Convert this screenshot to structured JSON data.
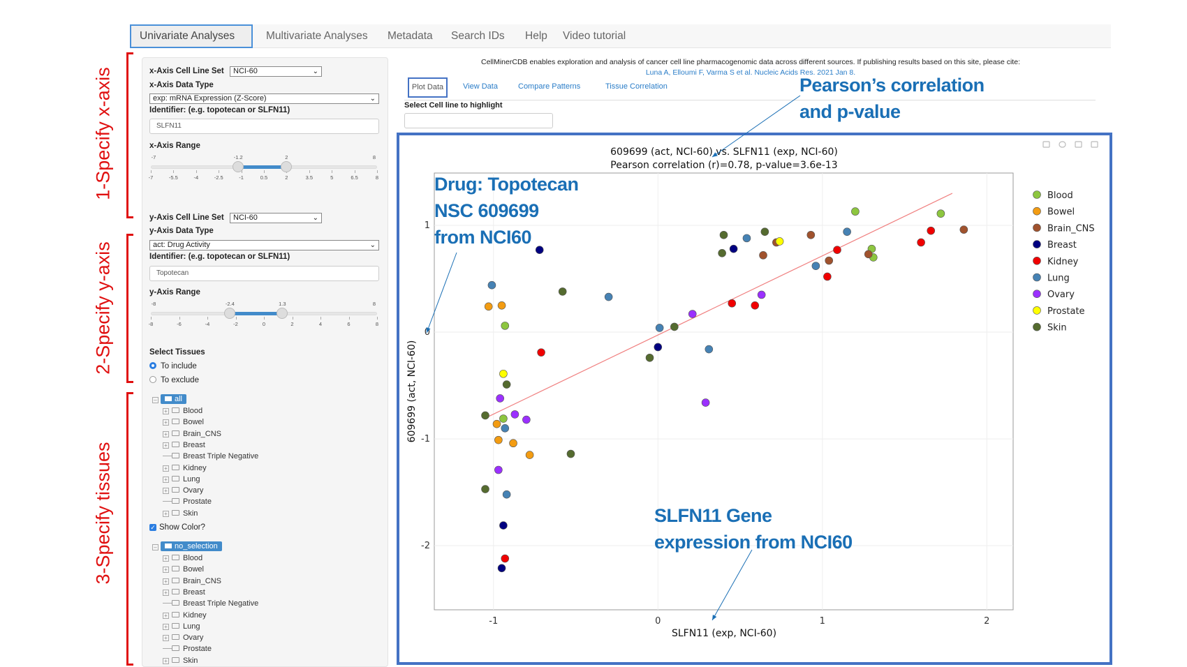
{
  "nav": {
    "tabs": [
      "Univariate Analyses",
      "Multivariate Analyses",
      "Metadata",
      "Search IDs",
      "Help",
      "Video tutorial"
    ],
    "active": 0
  },
  "steps": {
    "x": "1-Specify x-axis",
    "y": "2-Specify y-axis",
    "tissues": "3-Specify tissues"
  },
  "left": {
    "x_cell_line_set_label": "x-Axis Cell Line Set",
    "x_cell_line_set": "NCI-60",
    "x_data_type_label": "x-Axis Data Type",
    "x_data_type": "exp: mRNA Expression (Z-Score)",
    "x_identifier_label": "Identifier: (e.g. topotecan or SLFN11)",
    "x_identifier": "SLFN11",
    "x_range_label": "x-Axis Range",
    "x_range": {
      "min": -7,
      "max": 8,
      "low": -1.2,
      "high": 2,
      "ticks": [
        -7,
        -5.5,
        -4,
        -2.5,
        -1,
        0.5,
        2,
        3.5,
        5,
        6.5,
        8
      ]
    },
    "y_cell_line_set_label": "y-Axis Cell Line Set",
    "y_cell_line_set": "NCI-60",
    "y_data_type_label": "y-Axis Data Type",
    "y_data_type": "act: Drug Activity",
    "y_identifier_label": "Identifier: (e.g. topotecan or SLFN11)",
    "y_identifier": "Topotecan",
    "y_range_label": "y-Axis Range",
    "y_range": {
      "min": -8,
      "max": 8,
      "low": -2.4,
      "high": 1.3,
      "ticks": [
        -8,
        -6,
        -4,
        -2,
        0,
        2,
        4,
        6,
        8
      ]
    },
    "select_tissues_label": "Select Tissues",
    "include": "To include",
    "exclude": "To exclude",
    "mode": "include",
    "tree1_root": "all",
    "tree2_root": "no_selection",
    "tree_items": [
      {
        "label": "Blood",
        "expandable": true
      },
      {
        "label": "Bowel",
        "expandable": true
      },
      {
        "label": "Brain_CNS",
        "expandable": true
      },
      {
        "label": "Breast",
        "expandable": true
      },
      {
        "label": "Breast Triple Negative",
        "expandable": false
      },
      {
        "label": "Kidney",
        "expandable": true
      },
      {
        "label": "Lung",
        "expandable": true
      },
      {
        "label": "Ovary",
        "expandable": true
      },
      {
        "label": "Prostate",
        "expandable": false
      },
      {
        "label": "Skin",
        "expandable": true
      }
    ],
    "show_color_label": "Show Color?",
    "show_color": true
  },
  "main": {
    "citation": "CellMinerCDB enables exploration and analysis of cancer cell line pharmacogenomic data across different sources. If publishing results based on this site, please cite:",
    "citation_link": "Luna A, Elloumi F, Varma S et al. Nucleic Acids Res. 2021 Jan 8.",
    "tabs": [
      "Plot Data",
      "View Data",
      "Compare Patterns",
      "Tissue Correlation"
    ],
    "highlight_label": "Select Cell line to highlight",
    "highlight_value": ""
  },
  "annotations": {
    "pearson": [
      "Pearson’s correlation",
      "and p-value"
    ],
    "drug": [
      "Drug: Topotecan",
      "NSC 609699",
      "from NCI60"
    ],
    "gene": [
      "SLFN11 Gene",
      "expression from NCI60"
    ],
    "color": "#1a6fb5"
  },
  "chart_data": {
    "type": "scatter",
    "title": "609699 (act, NCI-60) vs. SLFN11 (exp, NCI-60)",
    "subtitle": "Pearson correlation (r)=0.78, p-value=3.6e-13",
    "xlabel": "SLFN11 (exp, NCI-60)",
    "ylabel": "609699 (act, NCI-60)",
    "xlim": [
      -1.36,
      2.16
    ],
    "ylim": [
      -2.6,
      1.49
    ],
    "xticks": [
      -1,
      0,
      1,
      2
    ],
    "yticks": [
      -2,
      -1,
      0,
      1
    ],
    "grid": true,
    "legend": "right",
    "fit_line": {
      "x": [
        -1.03,
        1.79
      ],
      "y": [
        -0.79,
        1.3
      ],
      "color": "#f08080"
    },
    "series": [
      {
        "name": "Blood",
        "color": "#8dc63f",
        "points": [
          [
            1.2,
            1.13
          ],
          [
            1.72,
            1.11
          ],
          [
            1.3,
            0.78
          ],
          [
            1.31,
            0.7
          ],
          [
            -0.93,
            0.06
          ],
          [
            -0.94,
            -0.81
          ]
        ]
      },
      {
        "name": "Bowel",
        "color": "#f39c12",
        "points": [
          [
            -1.03,
            0.24
          ],
          [
            -0.95,
            0.25
          ],
          [
            -0.98,
            -0.86
          ],
          [
            -0.97,
            -1.01
          ],
          [
            -0.88,
            -1.04
          ],
          [
            -0.78,
            -1.15
          ]
        ]
      },
      {
        "name": "Brain_CNS",
        "color": "#a0522d",
        "points": [
          [
            0.93,
            0.91
          ],
          [
            0.72,
            0.84
          ],
          [
            0.64,
            0.72
          ],
          [
            1.04,
            0.67
          ],
          [
            1.28,
            0.73
          ],
          [
            1.86,
            0.96
          ]
        ]
      },
      {
        "name": "Breast",
        "color": "#000080",
        "points": [
          [
            -0.72,
            0.77
          ],
          [
            0.46,
            0.78
          ],
          [
            0.0,
            -0.14
          ],
          [
            -0.94,
            -1.81
          ],
          [
            -0.95,
            -2.21
          ]
        ]
      },
      {
        "name": "Kidney",
        "color": "#f00000",
        "points": [
          [
            -0.71,
            -0.19
          ],
          [
            0.45,
            0.27
          ],
          [
            0.59,
            0.25
          ],
          [
            1.09,
            0.77
          ],
          [
            1.03,
            0.52
          ],
          [
            1.6,
            0.84
          ],
          [
            1.66,
            0.95
          ],
          [
            -0.93,
            -2.12
          ]
        ]
      },
      {
        "name": "Lung",
        "color": "#4682b4",
        "points": [
          [
            -1.01,
            0.44
          ],
          [
            -0.3,
            0.33
          ],
          [
            0.01,
            0.04
          ],
          [
            0.31,
            -0.16
          ],
          [
            0.54,
            0.88
          ],
          [
            0.96,
            0.62
          ],
          [
            1.15,
            0.94
          ],
          [
            -0.93,
            -0.9
          ],
          [
            -0.92,
            -1.52
          ]
        ]
      },
      {
        "name": "Ovary",
        "color": "#9b30ff",
        "points": [
          [
            0.21,
            0.17
          ],
          [
            0.63,
            0.35
          ],
          [
            0.29,
            -0.66
          ],
          [
            -0.96,
            -0.62
          ],
          [
            -0.87,
            -0.77
          ],
          [
            -0.8,
            -0.82
          ],
          [
            -0.97,
            -1.29
          ]
        ]
      },
      {
        "name": "Prostate",
        "color": "#ffff00",
        "points": [
          [
            0.74,
            0.85
          ],
          [
            -0.94,
            -0.39
          ]
        ]
      },
      {
        "name": "Skin",
        "color": "#556b2f",
        "points": [
          [
            0.4,
            0.91
          ],
          [
            0.65,
            0.94
          ],
          [
            0.39,
            0.74
          ],
          [
            -0.58,
            0.38
          ],
          [
            0.1,
            0.05
          ],
          [
            -0.05,
            -0.24
          ],
          [
            -0.92,
            -0.49
          ],
          [
            -1.05,
            -0.78
          ],
          [
            -0.53,
            -1.14
          ],
          [
            -1.05,
            -1.47
          ]
        ]
      }
    ]
  }
}
